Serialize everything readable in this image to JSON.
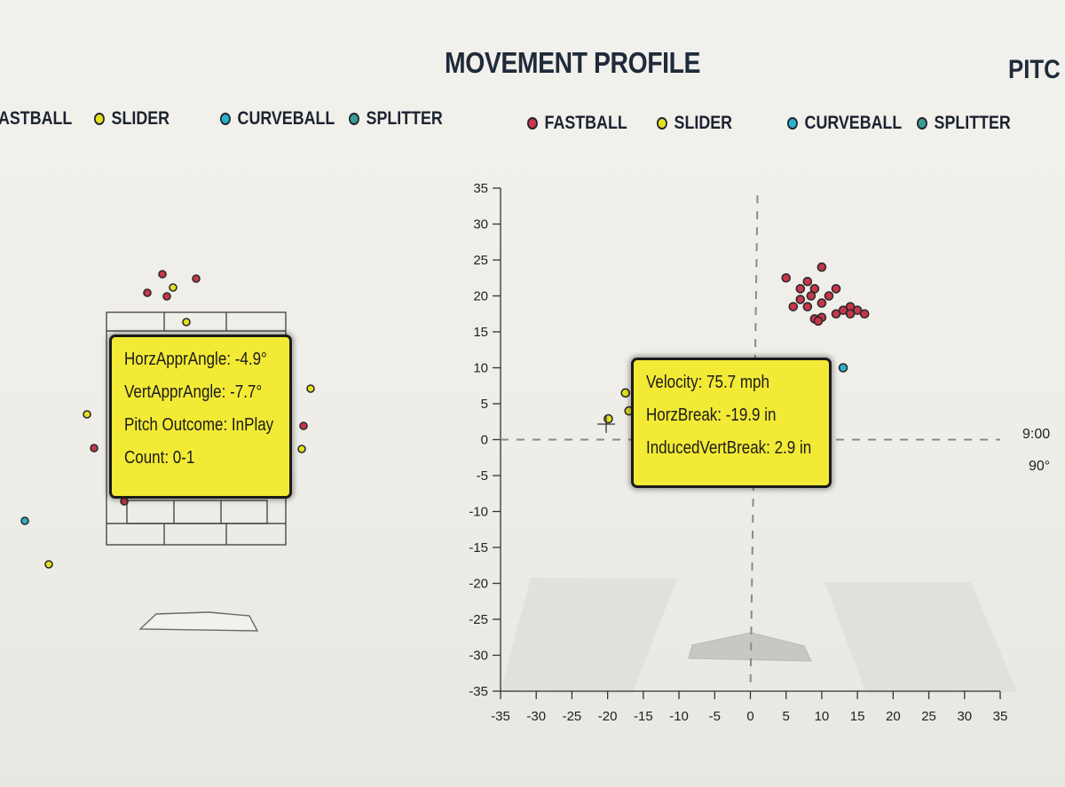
{
  "header": {
    "title": "MOVEMENT PROFILE",
    "right_title": "PITC"
  },
  "left_legend": [
    {
      "label": "ASTBALL",
      "color": null
    },
    {
      "label": "SLIDER",
      "color": "#e4e21e"
    },
    {
      "label": "CURVEBALL",
      "color": "#2bb1c8"
    },
    {
      "label": "SPLITTER",
      "color": "#3a9d95"
    }
  ],
  "right_legend": [
    {
      "label": "FASTBALL",
      "color": "#c8364a"
    },
    {
      "label": "SLIDER",
      "color": "#e4e21e"
    },
    {
      "label": "CURVEBALL",
      "color": "#2bb1c8"
    },
    {
      "label": "SPLITTER",
      "color": "#3a9d95"
    }
  ],
  "left_tooltip": {
    "horz_appr_angle": "HorzApprAngle: -4.9°",
    "vert_appr_angle": "VertApprAngle: -7.7°",
    "pitch_outcome": "Pitch Outcome: InPlay",
    "count": "Count: 0-1"
  },
  "right_tooltip": {
    "velocity": "Velocity: 75.7 mph",
    "horz_break": "HorzBreak: -19.9 in",
    "induced_vert_break": "InducedVertBreak: 2.9 in"
  },
  "clock": {
    "time": "9:00",
    "angle": "90°"
  },
  "colors": {
    "fastball": "#c8364a",
    "slider": "#e4e21e",
    "curveball": "#2bb1c8",
    "splitter": "#3a9d95",
    "tooltip": "#f2ea35"
  },
  "chart_data": {
    "type": "scatter",
    "title": "MOVEMENT PROFILE",
    "xlim": [
      -35,
      35
    ],
    "ylim": [
      -35,
      35
    ],
    "x_ticks": [
      "-35",
      "-30",
      "-25",
      "-20",
      "-15",
      "-10",
      "-5",
      "0",
      "5",
      "10",
      "15",
      "20",
      "25",
      "30",
      "35"
    ],
    "y_ticks": [
      "35",
      "30",
      "25",
      "20",
      "15",
      "10",
      "5",
      "0",
      "-5",
      "-10",
      "-15",
      "-20",
      "-25",
      "-30",
      "-35"
    ],
    "grid": false,
    "series": [
      {
        "name": "FASTBALL",
        "color": "#c8364a",
        "points": [
          [
            5,
            22.5
          ],
          [
            8,
            22
          ],
          [
            10,
            24
          ],
          [
            7,
            21
          ],
          [
            9,
            21
          ],
          [
            12,
            21
          ],
          [
            8.5,
            20
          ],
          [
            11,
            20
          ],
          [
            7,
            19.5
          ],
          [
            10,
            19
          ],
          [
            8,
            18.5
          ],
          [
            14,
            18.5
          ],
          [
            13,
            18
          ],
          [
            15,
            18
          ],
          [
            16,
            17.5
          ],
          [
            14,
            17.5
          ],
          [
            6,
            18.5
          ],
          [
            10,
            17
          ],
          [
            9,
            16.8
          ],
          [
            12,
            17.5
          ],
          [
            9.5,
            16.5
          ]
        ]
      },
      {
        "name": "SLIDER",
        "color": "#e4e21e",
        "points": [
          [
            -17.5,
            6.5
          ],
          [
            -17,
            4
          ],
          [
            -19.9,
            2.9
          ]
        ]
      },
      {
        "name": "CURVEBALL",
        "color": "#2bb1c8",
        "points": [
          [
            13,
            10
          ]
        ]
      },
      {
        "name": "SPLITTER",
        "color": "#3a9d95",
        "points": []
      }
    ]
  }
}
